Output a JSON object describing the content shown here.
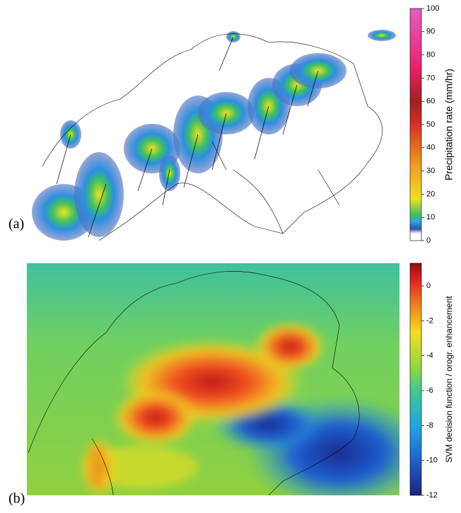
{
  "panels": [
    {
      "label": "(a)",
      "colorbar": {
        "label": "Precipitation rate (mm/hr)",
        "lim": [
          0,
          100
        ],
        "ticks": [
          0,
          10,
          20,
          30,
          40,
          50,
          60,
          70,
          80,
          90,
          100
        ]
      }
    },
    {
      "label": "(b)",
      "colorbar": {
        "label": "SVM decision function / orogr. enhancement",
        "lim": [
          -12,
          1.3
        ],
        "ticks": [
          -12,
          -10,
          -8,
          -6,
          -4,
          -2,
          0
        ]
      }
    }
  ]
}
